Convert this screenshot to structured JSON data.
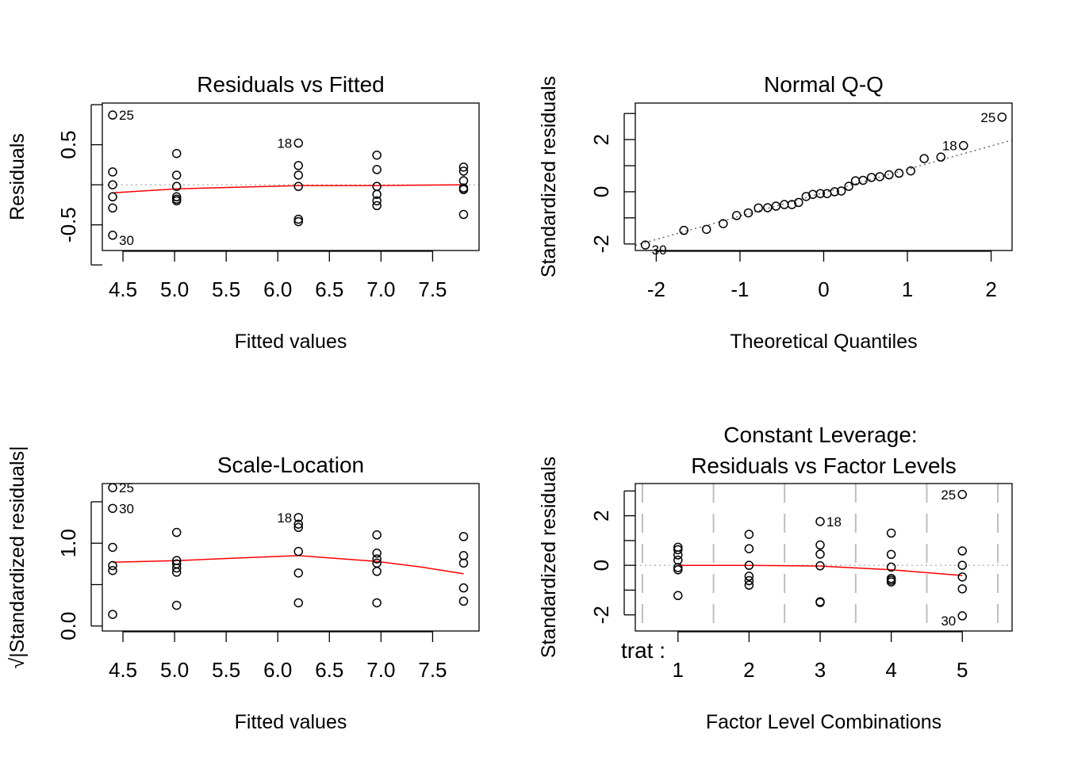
{
  "chart_data": [
    {
      "type": "scatter",
      "title": "Residuals vs Fitted",
      "xlabel": "Fitted values",
      "ylabel": "Residuals",
      "xticks": [
        "4.5",
        "5.0",
        "5.5",
        "6.0",
        "6.5",
        "7.0",
        "7.5"
      ],
      "yticks": [
        "-0.5",
        "0.5"
      ],
      "xlim": [
        4.3,
        7.95
      ],
      "ylim": [
        -0.82,
        1.02
      ],
      "points": [
        {
          "x": 4.4,
          "y": 0.87,
          "label": "25"
        },
        {
          "x": 4.4,
          "y": 0.16
        },
        {
          "x": 4.4,
          "y": 0.0
        },
        {
          "x": 4.4,
          "y": -0.15
        },
        {
          "x": 4.4,
          "y": -0.29
        },
        {
          "x": 4.4,
          "y": -0.63,
          "label": "30"
        },
        {
          "x": 5.02,
          "y": 0.39
        },
        {
          "x": 5.02,
          "y": 0.12
        },
        {
          "x": 5.02,
          "y": -0.02
        },
        {
          "x": 5.02,
          "y": -0.15
        },
        {
          "x": 5.02,
          "y": -0.18
        },
        {
          "x": 5.02,
          "y": -0.2
        },
        {
          "x": 6.2,
          "y": 0.52,
          "label": "18"
        },
        {
          "x": 6.2,
          "y": 0.24
        },
        {
          "x": 6.2,
          "y": 0.12
        },
        {
          "x": 6.2,
          "y": -0.02
        },
        {
          "x": 6.2,
          "y": -0.43
        },
        {
          "x": 6.2,
          "y": -0.46
        },
        {
          "x": 6.96,
          "y": 0.37
        },
        {
          "x": 6.96,
          "y": 0.19
        },
        {
          "x": 6.96,
          "y": -0.02
        },
        {
          "x": 6.96,
          "y": -0.12
        },
        {
          "x": 6.96,
          "y": -0.2
        },
        {
          "x": 6.96,
          "y": -0.26
        },
        {
          "x": 7.8,
          "y": 0.22
        },
        {
          "x": 7.8,
          "y": 0.17
        },
        {
          "x": 7.8,
          "y": 0.05
        },
        {
          "x": 7.8,
          "y": -0.04
        },
        {
          "x": 7.8,
          "y": -0.06
        },
        {
          "x": 7.8,
          "y": -0.37
        }
      ],
      "smooth_line": {
        "x": [
          4.4,
          5.02,
          6.2,
          6.96,
          7.8
        ],
        "y": [
          -0.1,
          -0.05,
          -0.01,
          -0.01,
          0.0
        ]
      },
      "reference_y": 0
    },
    {
      "type": "scatter",
      "title": "Normal Q-Q",
      "xlabel": "Theoretical Quantiles",
      "ylabel": "Standardized residuals",
      "xticks": [
        "-2",
        "-1",
        "0",
        "1",
        "2"
      ],
      "yticks": [
        "-2",
        "0",
        "2"
      ],
      "xlim": [
        -2.25,
        2.25
      ],
      "ylim": [
        -2.25,
        3.4
      ],
      "points": [
        {
          "x": -2.13,
          "y": -2.04,
          "label": "30"
        },
        {
          "x": -1.67,
          "y": -1.48
        },
        {
          "x": -1.4,
          "y": -1.44
        },
        {
          "x": -1.2,
          "y": -1.22
        },
        {
          "x": -1.04,
          "y": -0.91
        },
        {
          "x": -0.9,
          "y": -0.81
        },
        {
          "x": -0.78,
          "y": -0.62
        },
        {
          "x": -0.67,
          "y": -0.61
        },
        {
          "x": -0.57,
          "y": -0.55
        },
        {
          "x": -0.47,
          "y": -0.49
        },
        {
          "x": -0.38,
          "y": -0.49
        },
        {
          "x": -0.3,
          "y": -0.41
        },
        {
          "x": -0.21,
          "y": -0.18
        },
        {
          "x": -0.13,
          "y": -0.1
        },
        {
          "x": -0.04,
          "y": -0.07
        },
        {
          "x": 0.04,
          "y": -0.07
        },
        {
          "x": 0.13,
          "y": 0.0
        },
        {
          "x": 0.21,
          "y": 0.03
        },
        {
          "x": 0.3,
          "y": 0.21
        },
        {
          "x": 0.38,
          "y": 0.42
        },
        {
          "x": 0.47,
          "y": 0.44
        },
        {
          "x": 0.57,
          "y": 0.55
        },
        {
          "x": 0.67,
          "y": 0.58
        },
        {
          "x": 0.78,
          "y": 0.65
        },
        {
          "x": 0.9,
          "y": 0.71
        },
        {
          "x": 1.04,
          "y": 0.8
        },
        {
          "x": 1.2,
          "y": 1.27
        },
        {
          "x": 1.4,
          "y": 1.33
        },
        {
          "x": 1.67,
          "y": 1.77,
          "label": "18"
        },
        {
          "x": 2.13,
          "y": 2.86,
          "label": "25"
        }
      ],
      "reference_line": {
        "x": [
          -2.25,
          2.25
        ],
        "y": [
          -2.05,
          1.98
        ]
      }
    },
    {
      "type": "scatter",
      "title": "Scale-Location",
      "xlabel": "Fitted values",
      "ylabel": "√|Standardized residuals|",
      "xticks": [
        "4.5",
        "5.0",
        "5.5",
        "6.0",
        "6.5",
        "7.0",
        "7.5"
      ],
      "yticks": [
        "0.0",
        "1.0"
      ],
      "xlim": [
        4.3,
        7.95
      ],
      "ylim": [
        -0.06,
        1.72
      ],
      "points": [
        {
          "x": 4.4,
          "y": 1.67,
          "label": "25"
        },
        {
          "x": 4.4,
          "y": 1.42,
          "label": "30"
        },
        {
          "x": 4.4,
          "y": 0.95
        },
        {
          "x": 4.4,
          "y": 0.73
        },
        {
          "x": 4.4,
          "y": 0.67
        },
        {
          "x": 4.4,
          "y": 0.14
        },
        {
          "x": 5.02,
          "y": 1.13
        },
        {
          "x": 5.02,
          "y": 0.79
        },
        {
          "x": 5.02,
          "y": 0.75
        },
        {
          "x": 5.02,
          "y": 0.7
        },
        {
          "x": 5.02,
          "y": 0.65
        },
        {
          "x": 5.02,
          "y": 0.25
        },
        {
          "x": 6.2,
          "y": 1.31,
          "label": "18"
        },
        {
          "x": 6.2,
          "y": 1.23
        },
        {
          "x": 6.2,
          "y": 1.19
        },
        {
          "x": 6.2,
          "y": 0.9
        },
        {
          "x": 6.2,
          "y": 0.64
        },
        {
          "x": 6.2,
          "y": 0.28
        },
        {
          "x": 6.96,
          "y": 1.1
        },
        {
          "x": 6.96,
          "y": 0.88
        },
        {
          "x": 6.96,
          "y": 0.81
        },
        {
          "x": 6.96,
          "y": 0.76
        },
        {
          "x": 6.96,
          "y": 0.66
        },
        {
          "x": 6.96,
          "y": 0.28
        },
        {
          "x": 7.8,
          "y": 1.08
        },
        {
          "x": 7.8,
          "y": 0.85
        },
        {
          "x": 7.8,
          "y": 0.76
        },
        {
          "x": 7.8,
          "y": 0.46
        },
        {
          "x": 7.8,
          "y": 0.3
        }
      ],
      "smooth_line": {
        "x": [
          4.4,
          5.02,
          5.6,
          6.2,
          6.96,
          7.4,
          7.8
        ],
        "y": [
          0.77,
          0.79,
          0.82,
          0.85,
          0.78,
          0.71,
          0.63
        ]
      }
    },
    {
      "type": "scatter",
      "title": "Constant Leverage:\nResiduals vs Factor Levels",
      "title_lines": [
        "Constant Leverage:",
        "Residuals vs Factor Levels"
      ],
      "xlabel": "Factor Level Combinations",
      "ylabel": "Standardized residuals",
      "factor_label": "trat :",
      "xticks": [
        "1",
        "2",
        "3",
        "4",
        "5"
      ],
      "yticks": [
        "-2",
        "0",
        "2"
      ],
      "xlim": [
        0.4,
        5.7
      ],
      "ylim": [
        -2.65,
        3.3
      ],
      "points": [
        {
          "x": 1,
          "y": 0.73
        },
        {
          "x": 1,
          "y": 0.63
        },
        {
          "x": 1,
          "y": 0.42
        },
        {
          "x": 1,
          "y": 0.21
        },
        {
          "x": 1,
          "y": -0.09
        },
        {
          "x": 1,
          "y": -0.18
        },
        {
          "x": 1,
          "y": -1.22
        },
        {
          "x": 2,
          "y": 1.25
        },
        {
          "x": 2,
          "y": 0.67
        },
        {
          "x": 2,
          "y": 0.0
        },
        {
          "x": 2,
          "y": -0.44
        },
        {
          "x": 2,
          "y": -0.62
        },
        {
          "x": 2,
          "y": -0.8
        },
        {
          "x": 3,
          "y": 1.77,
          "label": "18"
        },
        {
          "x": 3,
          "y": 0.82
        },
        {
          "x": 3,
          "y": 0.45
        },
        {
          "x": 3,
          "y": -0.02
        },
        {
          "x": 3,
          "y": -1.47
        },
        {
          "x": 3,
          "y": -1.5
        },
        {
          "x": 4,
          "y": 1.3
        },
        {
          "x": 4,
          "y": 0.44
        },
        {
          "x": 4,
          "y": -0.07
        },
        {
          "x": 4,
          "y": -0.53
        },
        {
          "x": 4,
          "y": -0.6
        },
        {
          "x": 4,
          "y": -0.67
        },
        {
          "x": 5,
          "y": 2.86,
          "label": "25"
        },
        {
          "x": 5,
          "y": 0.58
        },
        {
          "x": 5,
          "y": 0.0
        },
        {
          "x": 5,
          "y": -0.47
        },
        {
          "x": 5,
          "y": -0.95
        },
        {
          "x": 5,
          "y": -2.04,
          "label": "30"
        }
      ],
      "smooth_line": {
        "x": [
          1,
          2,
          3,
          4,
          5
        ],
        "y": [
          0.0,
          0.0,
          -0.03,
          -0.18,
          -0.41
        ]
      },
      "reference_y": 0,
      "separators": [
        0.5,
        1.5,
        2.5,
        3.5,
        4.5,
        5.5
      ]
    }
  ]
}
